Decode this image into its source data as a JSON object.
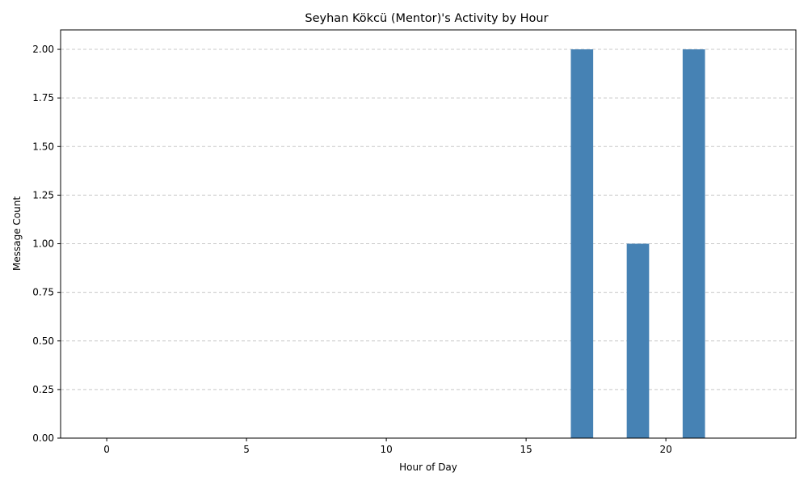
{
  "chart_data": {
    "type": "bar",
    "title": "Seyhan Kökcü (Mentor)'s Activity by Hour",
    "xlabel": "Hour of Day",
    "ylabel": "Message Count",
    "x": [
      17,
      19,
      21
    ],
    "values": [
      2,
      1,
      2
    ],
    "xlim": [
      -1.65,
      24.65
    ],
    "ylim": [
      0,
      2.1
    ],
    "xticks": [
      0,
      5,
      10,
      15,
      20
    ],
    "yticks": [
      0,
      0.25,
      0.5,
      0.75,
      1.0,
      1.25,
      1.5,
      1.75,
      2.0
    ],
    "ytick_labels": [
      "0.00",
      "0.25",
      "0.50",
      "0.75",
      "1.00",
      "1.25",
      "1.50",
      "1.75",
      "2.00"
    ],
    "grid": "y-dashed",
    "bar_color": "#4682b4"
  }
}
